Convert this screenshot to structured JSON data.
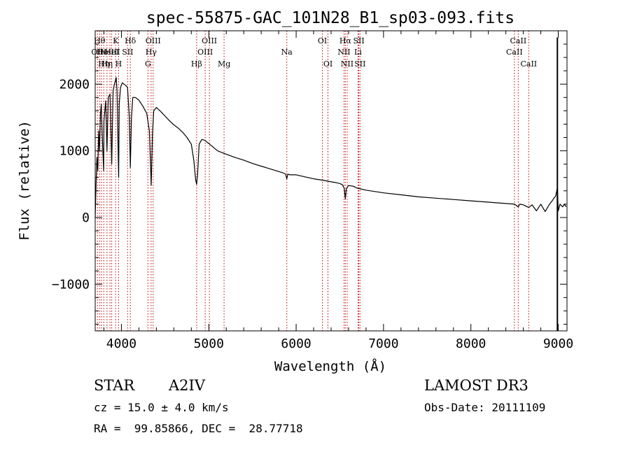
{
  "chart_data": {
    "type": "line",
    "title": "spec-55875-GAC_101N28_B1_sp03-093.fits",
    "xlabel": "Wavelength (Å)",
    "ylabel": "Flux (relative)",
    "xlim": [
      3700,
      9100
    ],
    "ylim": [
      -1700,
      2800
    ],
    "xticks": [
      4000,
      5000,
      6000,
      7000,
      8000,
      9000
    ],
    "yticks": [
      -1000,
      0,
      1000,
      2000
    ],
    "xtick_labels": [
      "4000",
      "5000",
      "6000",
      "7000",
      "8000",
      "9000"
    ],
    "ytick_labels": [
      "−1000",
      "0",
      "1000",
      "2000"
    ],
    "grid": false,
    "series": [
      {
        "name": "flux",
        "x": [
          3700,
          3710,
          3720,
          3730,
          3740,
          3750,
          3760,
          3770,
          3780,
          3797,
          3800,
          3820,
          3835,
          3850,
          3870,
          3889,
          3905,
          3920,
          3940,
          3950,
          3968,
          3975,
          3990,
          4010,
          4030,
          4050,
          4070,
          4090,
          4102,
          4115,
          4130,
          4160,
          4200,
          4250,
          4290,
          4320,
          4341,
          4355,
          4370,
          4400,
          4450,
          4500,
          4550,
          4600,
          4650,
          4700,
          4750,
          4800,
          4830,
          4850,
          4861,
          4872,
          4890,
          4920,
          4950,
          5000,
          5100,
          5200,
          5300,
          5400,
          5500,
          5600,
          5700,
          5800,
          5850,
          5880,
          5893,
          5905,
          5930,
          6000,
          6100,
          6200,
          6300,
          6400,
          6450,
          6500,
          6530,
          6550,
          6563,
          6575,
          6600,
          6650,
          6700,
          6800,
          7000,
          7200,
          7400,
          7600,
          7800,
          8000,
          8200,
          8400,
          8500,
          8542,
          8560,
          8600,
          8662,
          8700,
          8750,
          8800,
          8850,
          8900,
          8930,
          8950,
          8970,
          8990,
          9000,
          9020,
          9050,
          9070,
          9090
        ],
        "values": [
          0,
          500,
          900,
          700,
          1300,
          1000,
          1550,
          1700,
          1250,
          700,
          1450,
          1750,
          1000,
          1800,
          1850,
          800,
          1900,
          2000,
          2100,
          1900,
          600,
          1700,
          1950,
          2020,
          2000,
          1980,
          1950,
          1500,
          750,
          1500,
          1800,
          1800,
          1760,
          1660,
          1560,
          1300,
          480,
          1250,
          1600,
          1650,
          1590,
          1520,
          1450,
          1390,
          1340,
          1280,
          1200,
          1100,
          850,
          560,
          500,
          650,
          1100,
          1170,
          1160,
          1110,
          1000,
          950,
          900,
          860,
          810,
          770,
          730,
          690,
          670,
          650,
          580,
          650,
          640,
          640,
          610,
          580,
          560,
          535,
          525,
          510,
          490,
          440,
          280,
          430,
          480,
          470,
          440,
          410,
          370,
          340,
          310,
          290,
          270,
          250,
          230,
          210,
          200,
          160,
          200,
          190,
          150,
          190,
          100,
          200,
          90,
          200,
          250,
          290,
          320,
          450,
          100,
          200,
          160,
          200,
          160
        ]
      }
    ],
    "vertical_lines": [
      {
        "x": 3726,
        "label": "OII",
        "row": 2
      },
      {
        "x": 3750,
        "label": "Hθ",
        "row": 1
      },
      {
        "x": 3771,
        "label": "Hι",
        "row": 2
      },
      {
        "x": 3798,
        "label": "Hη",
        "row": 3
      },
      {
        "x": 3835,
        "label": "Hη",
        "row": 3
      },
      {
        "x": 3869,
        "label": "NeIII",
        "row": 2
      },
      {
        "x": 3889,
        "label": "HeI",
        "row": 2
      },
      {
        "x": 3934,
        "label": "K",
        "row": 1
      },
      {
        "x": 3968,
        "label": "H",
        "row": 3
      },
      {
        "x": 4071,
        "label": "SII",
        "row": 2
      },
      {
        "x": 4102,
        "label": "Hδ",
        "row": 1
      },
      {
        "x": 4304,
        "label": "G",
        "row": 3
      },
      {
        "x": 4340,
        "label": "Hγ",
        "row": 2
      },
      {
        "x": 4363,
        "label": "OIII",
        "row": 1
      },
      {
        "x": 4861,
        "label": "Hβ",
        "row": 3
      },
      {
        "x": 4959,
        "label": "OIII",
        "row": 2
      },
      {
        "x": 5007,
        "label": "OIII",
        "row": 1
      },
      {
        "x": 5175,
        "label": "Mg",
        "row": 3
      },
      {
        "x": 5893,
        "label": "Na",
        "row": 2
      },
      {
        "x": 6300,
        "label": "OI",
        "row": 1
      },
      {
        "x": 6364,
        "label": "OI",
        "row": 3
      },
      {
        "x": 6548,
        "label": "NII",
        "row": 2
      },
      {
        "x": 6563,
        "label": "Hα",
        "row": 1
      },
      {
        "x": 6584,
        "label": "NII",
        "row": 3
      },
      {
        "x": 6708,
        "label": "Li",
        "row": 2
      },
      {
        "x": 6717,
        "label": "SII",
        "row": 1
      },
      {
        "x": 6731,
        "label": "SII",
        "row": 3
      },
      {
        "x": 8498,
        "label": "CaII",
        "row": 2
      },
      {
        "x": 8542,
        "label": "CaII",
        "row": 1
      },
      {
        "x": 8662,
        "label": "CaII",
        "row": 3
      }
    ]
  },
  "info": {
    "object_class": "STAR",
    "subclass": "A2IV",
    "survey": "LAMOST DR3",
    "redshift": "cz = 15.0 ± 4.0 km/s",
    "obs_date": "Obs-Date: 20111109",
    "coords": "RA =  99.85866, DEC =  28.77718"
  }
}
